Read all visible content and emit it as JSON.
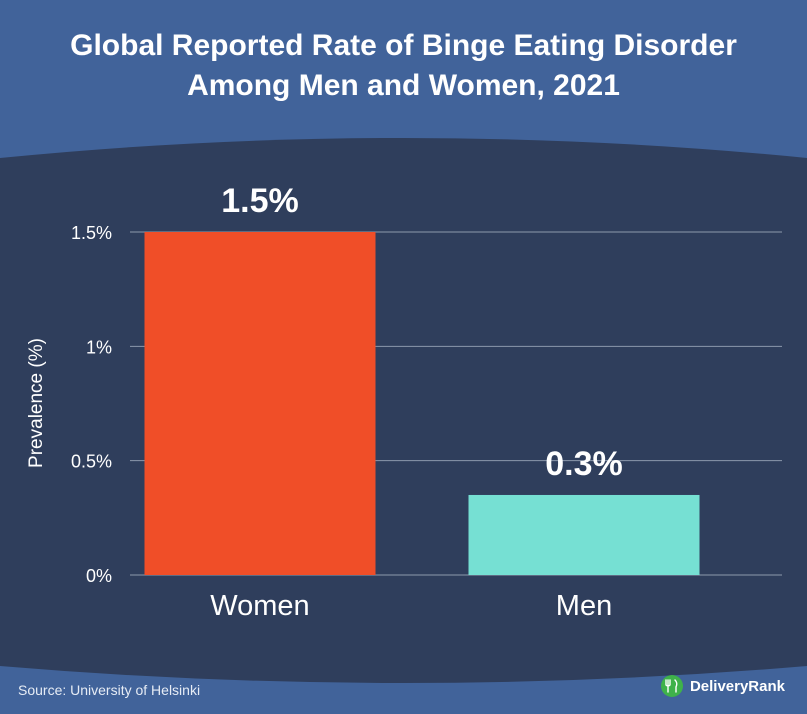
{
  "title_line1": "Global Reported Rate of Binge Eating Disorder",
  "title_line2": "Among Men and Women, 2021",
  "source": "Source: University of Helsinki",
  "brand": "DeliveryRank",
  "colors": {
    "outer_bg": "#41639a",
    "panel_bg": "#2f3e5c",
    "women_bar": "#f04e28",
    "men_bar": "#76e0d3",
    "grid": "#8d99ad",
    "text": "#ffffff",
    "logo_green": "#3fb24a"
  },
  "chart_data": {
    "type": "bar",
    "categories": [
      "Women",
      "Men"
    ],
    "values": [
      1.5,
      0.35
    ],
    "data_labels": [
      "1.5%",
      "0.3%"
    ],
    "ylabel": "Prevalence (%)",
    "yticks": [
      0,
      0.5,
      1,
      1.5
    ],
    "ytick_labels": [
      "0%",
      "0.5%",
      "1%",
      "1.5%"
    ],
    "ylim": [
      0,
      1.5
    ],
    "grid": true
  }
}
